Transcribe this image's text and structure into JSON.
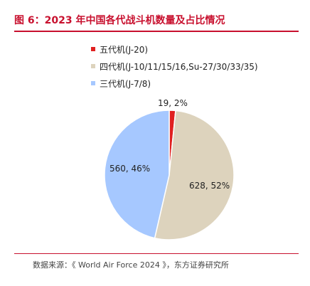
{
  "figure": {
    "title": "图 6：2023 年中国各代战斗机数量及占比情况",
    "source": "数据来源：《 World Air Force 2024 》，东方证券研究所"
  },
  "colors": {
    "accent": "#c8102e",
    "series": [
      "#e02020",
      "#ddd3bd",
      "#a6c8ff"
    ]
  },
  "chart_data": {
    "type": "pie",
    "title": "",
    "legend_position": "top",
    "slices": [
      {
        "label": "五代机(J-20)",
        "value": 19,
        "percent": 2,
        "data_label": "19, 2%"
      },
      {
        "label": "四代机(J-10/11/15/16,Su-27/30/33/35)",
        "value": 628,
        "percent": 52,
        "data_label": "628, 52%"
      },
      {
        "label": "三代机(J-7/8)",
        "value": 560,
        "percent": 46,
        "data_label": "560, 46%"
      }
    ]
  }
}
